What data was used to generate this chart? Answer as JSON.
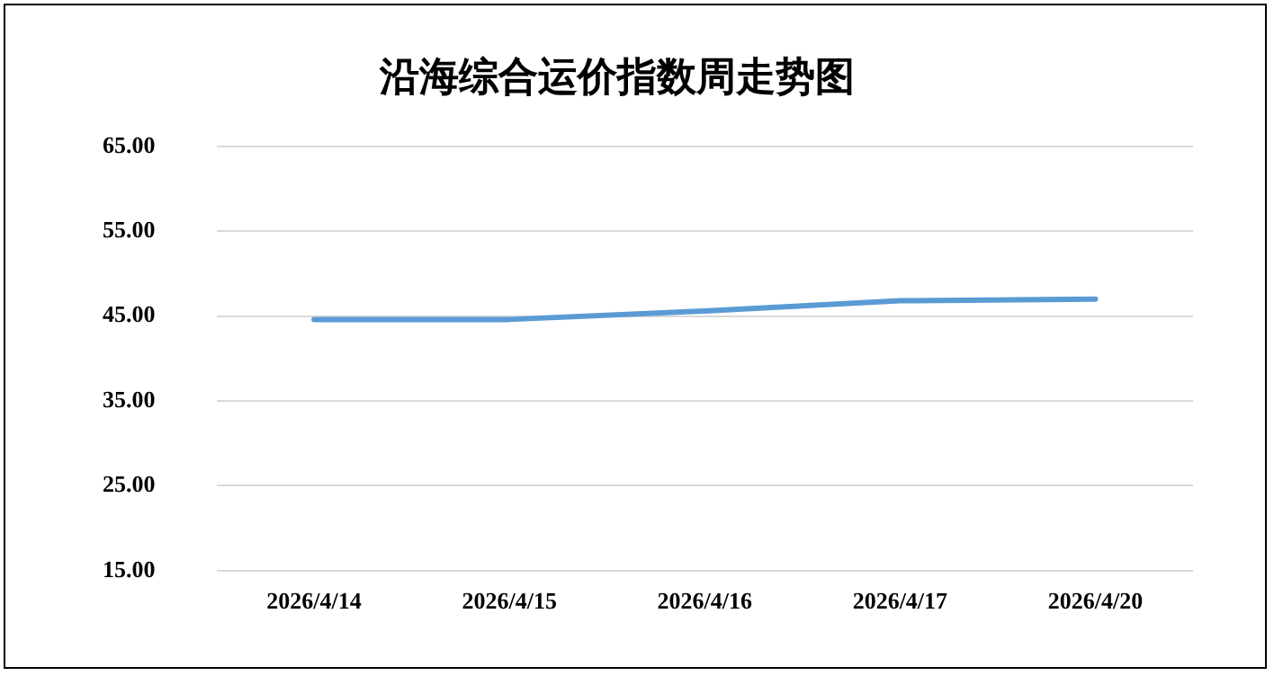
{
  "chart_data": {
    "type": "line",
    "title": "沿海综合运价指数周走势图",
    "categories": [
      "2026/4/14",
      "2026/4/15",
      "2026/4/16",
      "2026/4/17",
      "2026/4/20"
    ],
    "series": [
      {
        "color": "#5b9bd5",
        "values": [
          44.6,
          44.6,
          45.6,
          46.8,
          47.0
        ]
      }
    ],
    "ylim": [
      15,
      65
    ],
    "yticks": [
      {
        "value": 15,
        "label": "15.00"
      },
      {
        "value": 25,
        "label": "25.00"
      },
      {
        "value": 35,
        "label": "35.00"
      },
      {
        "value": 45,
        "label": "45.00"
      },
      {
        "value": 55,
        "label": "55.00"
      },
      {
        "value": 65,
        "label": "65.00"
      }
    ],
    "grid": "y",
    "legend": false,
    "marker": "none",
    "line_style": "solid"
  }
}
